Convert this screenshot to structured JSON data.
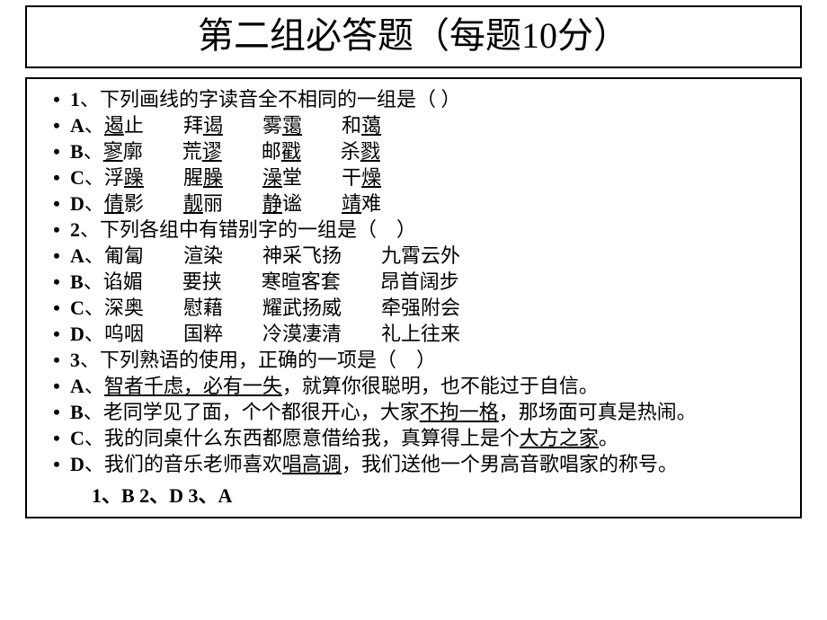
{
  "title": "第二组必答题（每题10分）",
  "colors": {
    "text": "#000000",
    "background": "#ffffff",
    "border": "#000000"
  },
  "typography": {
    "title_fontsize": 40,
    "body_fontsize": 22,
    "answer_fontsize": 22,
    "font_family": "SimSun"
  },
  "bullet": "•",
  "spacer": "　　",
  "lines": [
    {
      "prefix": "1",
      "prefix_sep": "、",
      "plain": "下列画线的字读音全不相同的一组是（  ）"
    },
    {
      "prefix": "A",
      "prefix_sep": "、",
      "words": [
        {
          "u": "遏",
          "rest": "止"
        },
        {
          "plain": "拜",
          "u2": "谒"
        },
        {
          "plain": "雾",
          "u2": "霭"
        },
        {
          "plain": "和",
          "u2": "蔼"
        }
      ]
    },
    {
      "prefix": "B",
      "prefix_sep": "、",
      "words": [
        {
          "u": "寥",
          "rest": "廓"
        },
        {
          "plain": "荒",
          "u2": "谬"
        },
        {
          "plain": "邮",
          "u2": "戳"
        },
        {
          "plain": "杀",
          "u2": "戮"
        }
      ]
    },
    {
      "prefix": "C",
      "prefix_sep": "、",
      "words": [
        {
          "plain": "浮",
          "u2": "躁"
        },
        {
          "plain": "腥",
          "u2": "臊"
        },
        {
          "u": "澡",
          "rest": "堂"
        },
        {
          "plain": "干",
          "u2": "燥"
        }
      ]
    },
    {
      "prefix": "D",
      "prefix_sep": "、",
      "words": [
        {
          "u": "倩",
          "rest": "影"
        },
        {
          "u": "靓",
          "rest": "丽"
        },
        {
          "u": "静",
          "rest": "谧"
        },
        {
          "u": "靖",
          "rest": "难"
        }
      ]
    },
    {
      "prefix": "2",
      "prefix_sep": "、",
      "plain": "下列各组中有错别字的一组是（　）"
    },
    {
      "prefix": "A",
      "prefix_sep": "、",
      "group4": [
        "匍匐",
        "渲染",
        "神采飞扬",
        "九霄云外"
      ]
    },
    {
      "prefix": "B",
      "prefix_sep": "、",
      "group4": [
        "谄媚",
        "要挟",
        "寒暄客套",
        "昂首阔步"
      ]
    },
    {
      "prefix": "C",
      "prefix_sep": "、",
      "group4": [
        "深奥",
        "慰藉",
        "耀武扬威",
        "牵强附会"
      ]
    },
    {
      "prefix": "D",
      "prefix_sep": "、",
      "group4": [
        "呜咽",
        "国粹",
        "冷漠凄清",
        "礼上往来"
      ]
    },
    {
      "prefix": "3",
      "prefix_sep": "、",
      "plain": "下列熟语的使用，正确的一项是（　）"
    },
    {
      "prefix": "A",
      "prefix_sep": "、",
      "sentence_parts": [
        {
          "u": true,
          "t": "智者千虑，必有一失"
        },
        {
          "u": false,
          "t": "，就算你很聪明，也不能过于自信。"
        }
      ]
    },
    {
      "prefix": "B",
      "prefix_sep": "、",
      "sentence_parts": [
        {
          "u": false,
          "t": "老同学见了面，个个都很开心，大家"
        },
        {
          "u": true,
          "t": "不拘一格"
        },
        {
          "u": false,
          "t": "，那场面可真是热闹。"
        }
      ],
      "wrap": true
    },
    {
      "prefix": "C",
      "prefix_sep": "、",
      "sentence_parts": [
        {
          "u": false,
          "t": "我的同桌什么东西都愿意借给我，真算得上是个"
        },
        {
          "u": true,
          "t": "大方之家"
        },
        {
          "u": false,
          "t": "。"
        }
      ]
    },
    {
      "prefix": "D",
      "prefix_sep": "、",
      "sentence_parts": [
        {
          "u": false,
          "t": "我们的音乐老师喜欢"
        },
        {
          "u": true,
          "t": "唱高调"
        },
        {
          "u": false,
          "t": "，我们送他一个男高音歌唱家的称号。"
        }
      ]
    }
  ],
  "answers": "1、B  2、D   3、A"
}
